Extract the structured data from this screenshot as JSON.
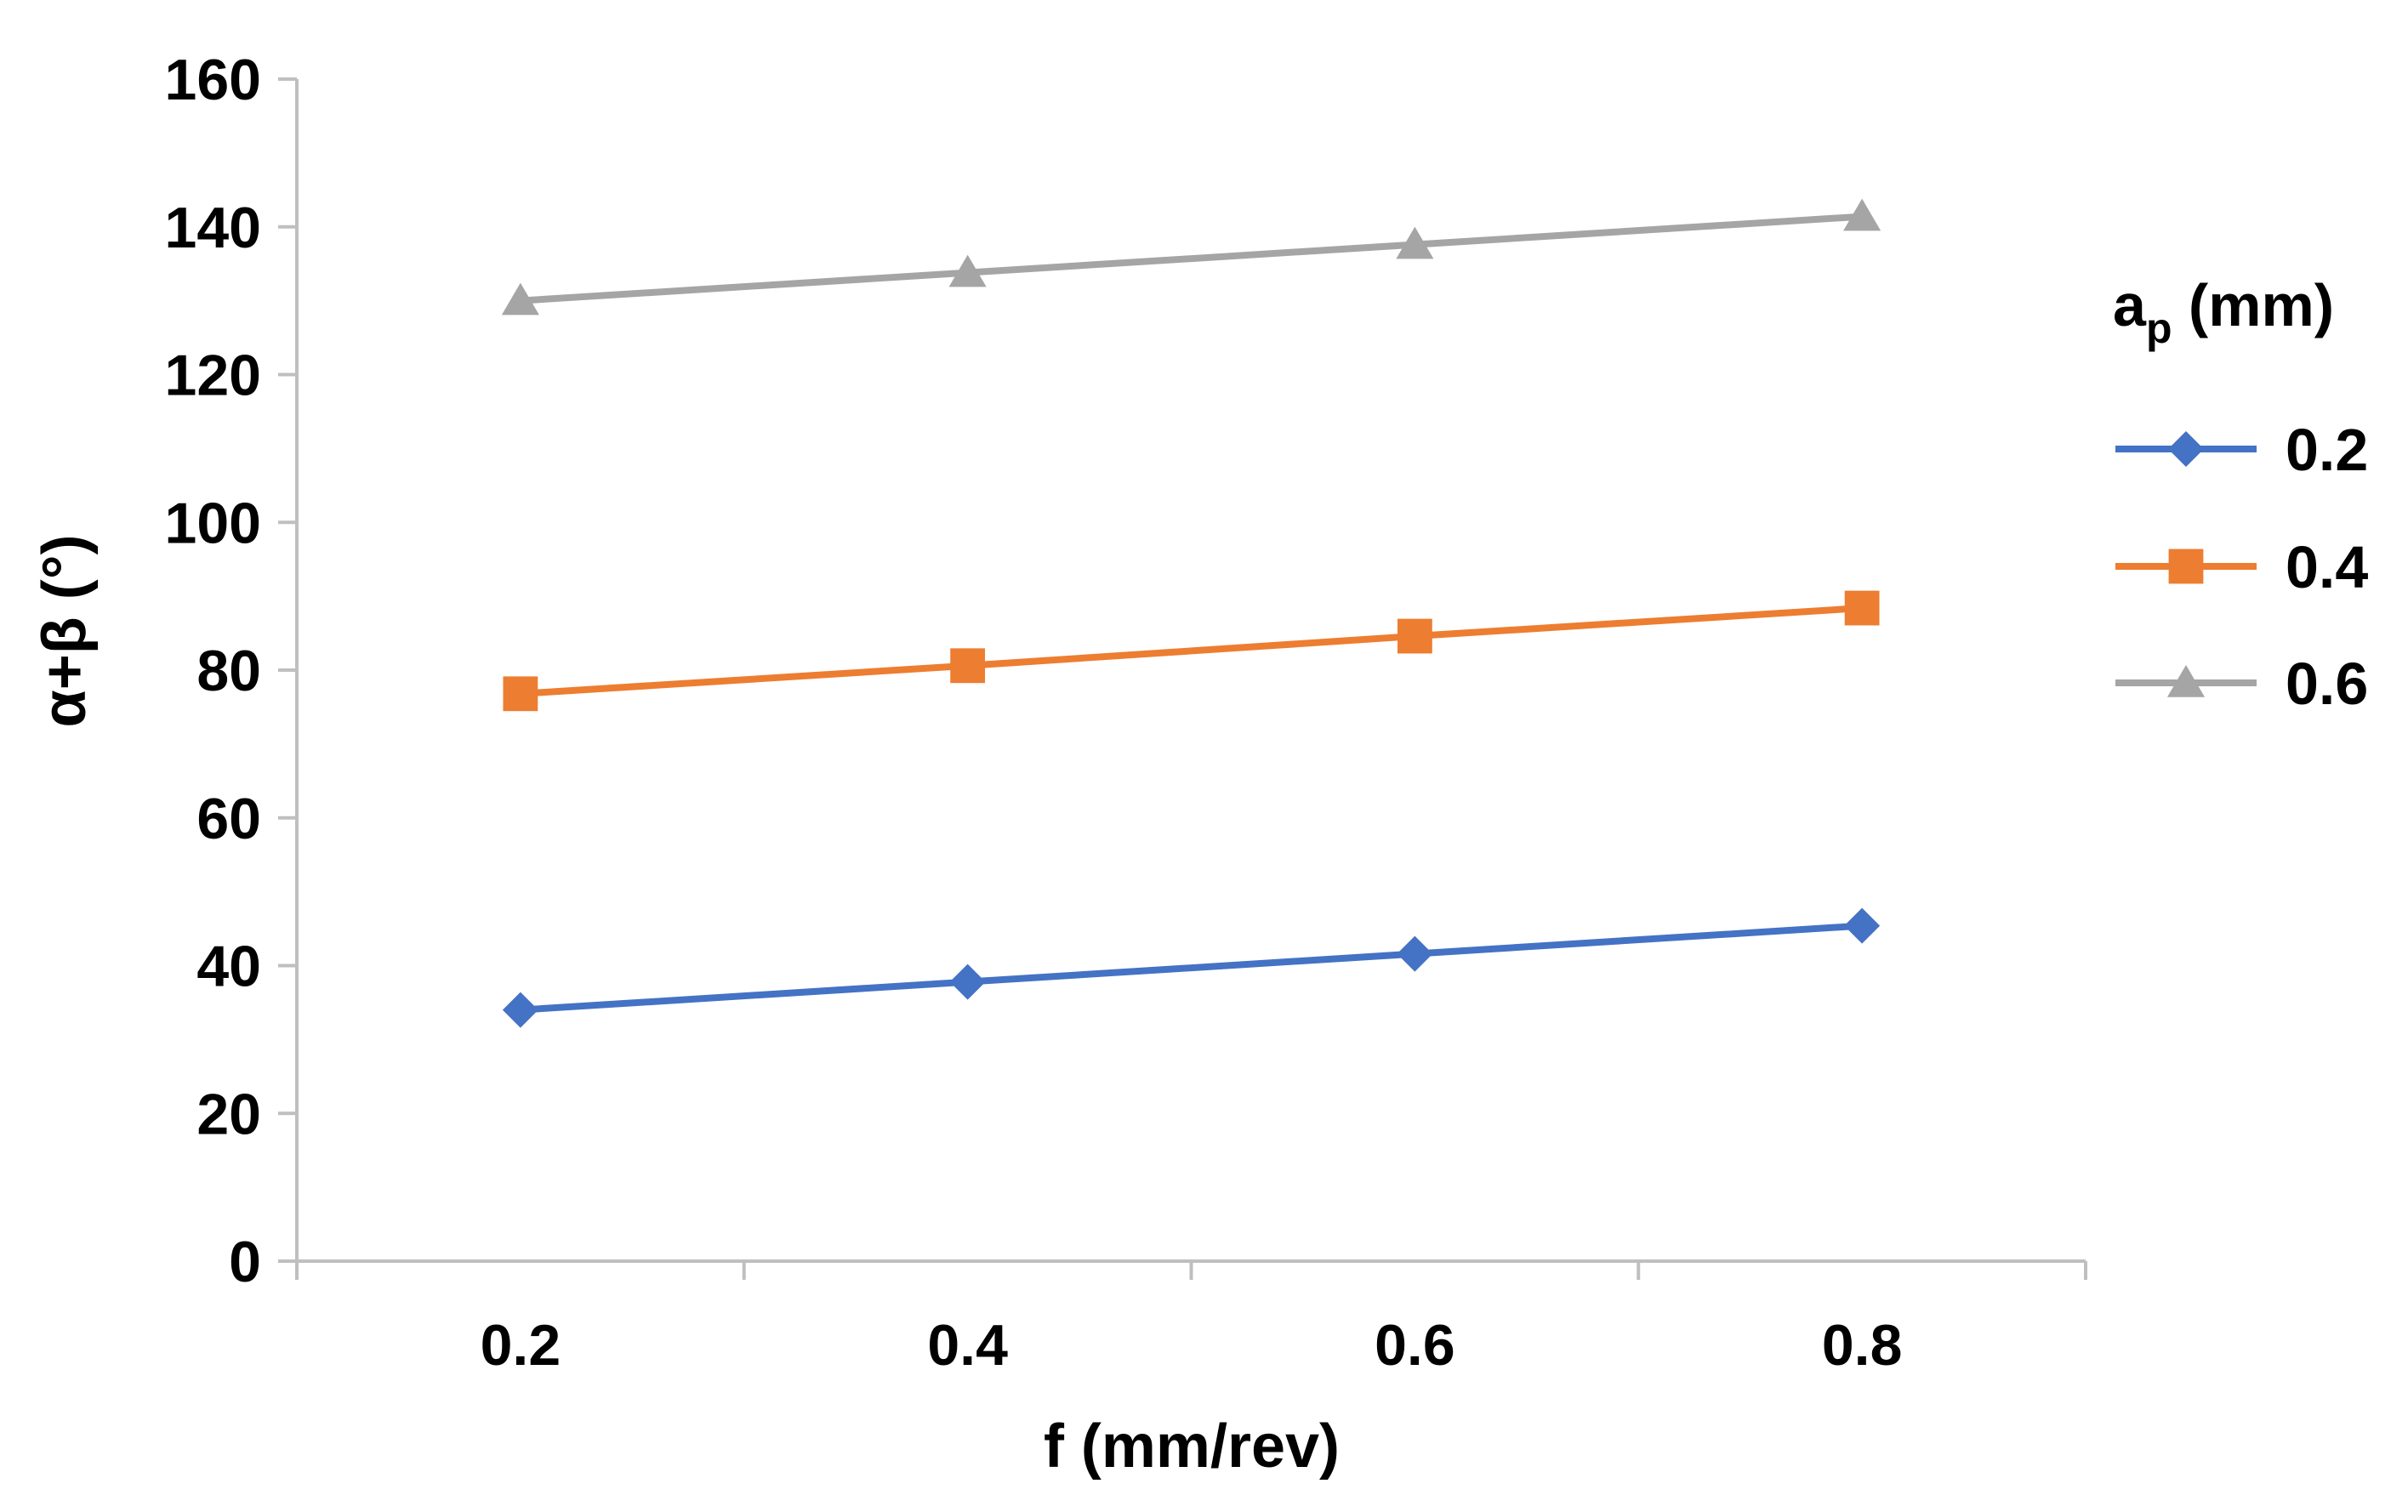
{
  "chart_data": {
    "type": "line",
    "title": "",
    "xlabel": "f (mm/rev)",
    "ylabel": "α+β (°)",
    "x": [
      0.2,
      0.4,
      0.6,
      0.8
    ],
    "x_tick_labels": [
      "0.2",
      "0.4",
      "0.6",
      "0.8"
    ],
    "xlim": [
      0.1,
      0.9
    ],
    "ylim": [
      0,
      160
    ],
    "y_ticks": [
      0,
      20,
      40,
      60,
      80,
      100,
      120,
      140,
      160
    ],
    "y_tick_labels": [
      "0",
      "20",
      "40",
      "60",
      "80",
      "100",
      "120",
      "140",
      "160"
    ],
    "grid": false,
    "legend": {
      "position": "right",
      "title_main": "a",
      "title_sub": "p",
      "title_rest": " (mm)"
    },
    "series": [
      {
        "name": "0.2",
        "color": "#4472C4",
        "marker": "diamond",
        "values": [
          34,
          37.8,
          41.6,
          45.4
        ]
      },
      {
        "name": "0.4",
        "color": "#ED7D31",
        "marker": "square",
        "values": [
          76.8,
          80.6,
          84.6,
          88.4
        ]
      },
      {
        "name": "0.6",
        "color": "#A5A5A5",
        "marker": "triangle",
        "values": [
          130,
          133.8,
          137.6,
          141.4
        ]
      }
    ]
  }
}
